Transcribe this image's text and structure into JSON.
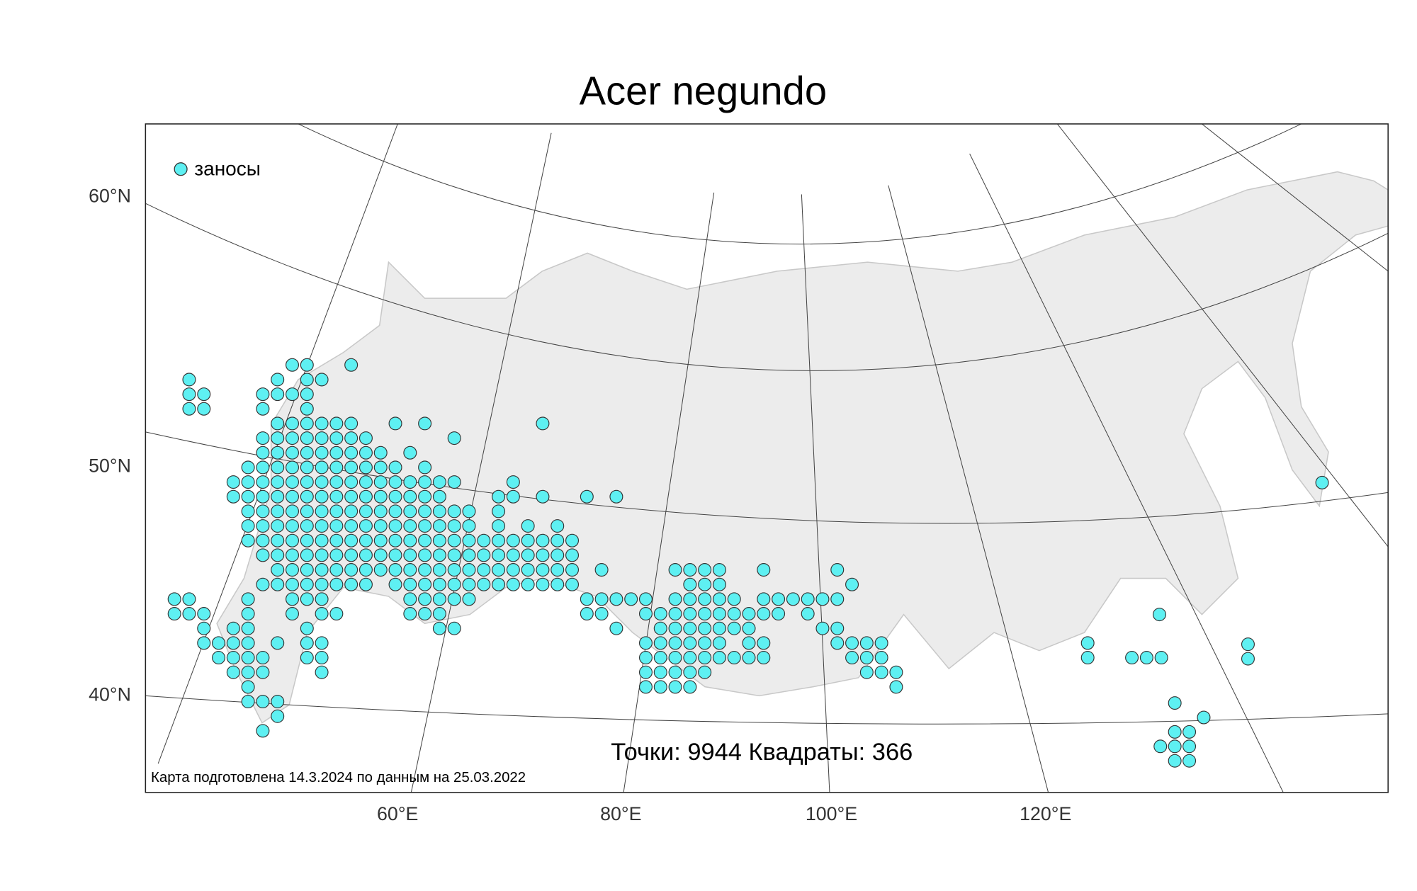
{
  "title": "Acer negundo",
  "legend": {
    "label": "заносы",
    "color": "#5ef0f2"
  },
  "stats": "Точки: 9944 Квадраты: 366",
  "credit": "Карта подготовлена 14.3.2024 по данным на 25.03.2022",
  "lat_labels": [
    "60°N",
    "50°N",
    "40°N"
  ],
  "lon_labels": [
    "60°E",
    "80°E",
    "100°E",
    "120°E"
  ]
}
